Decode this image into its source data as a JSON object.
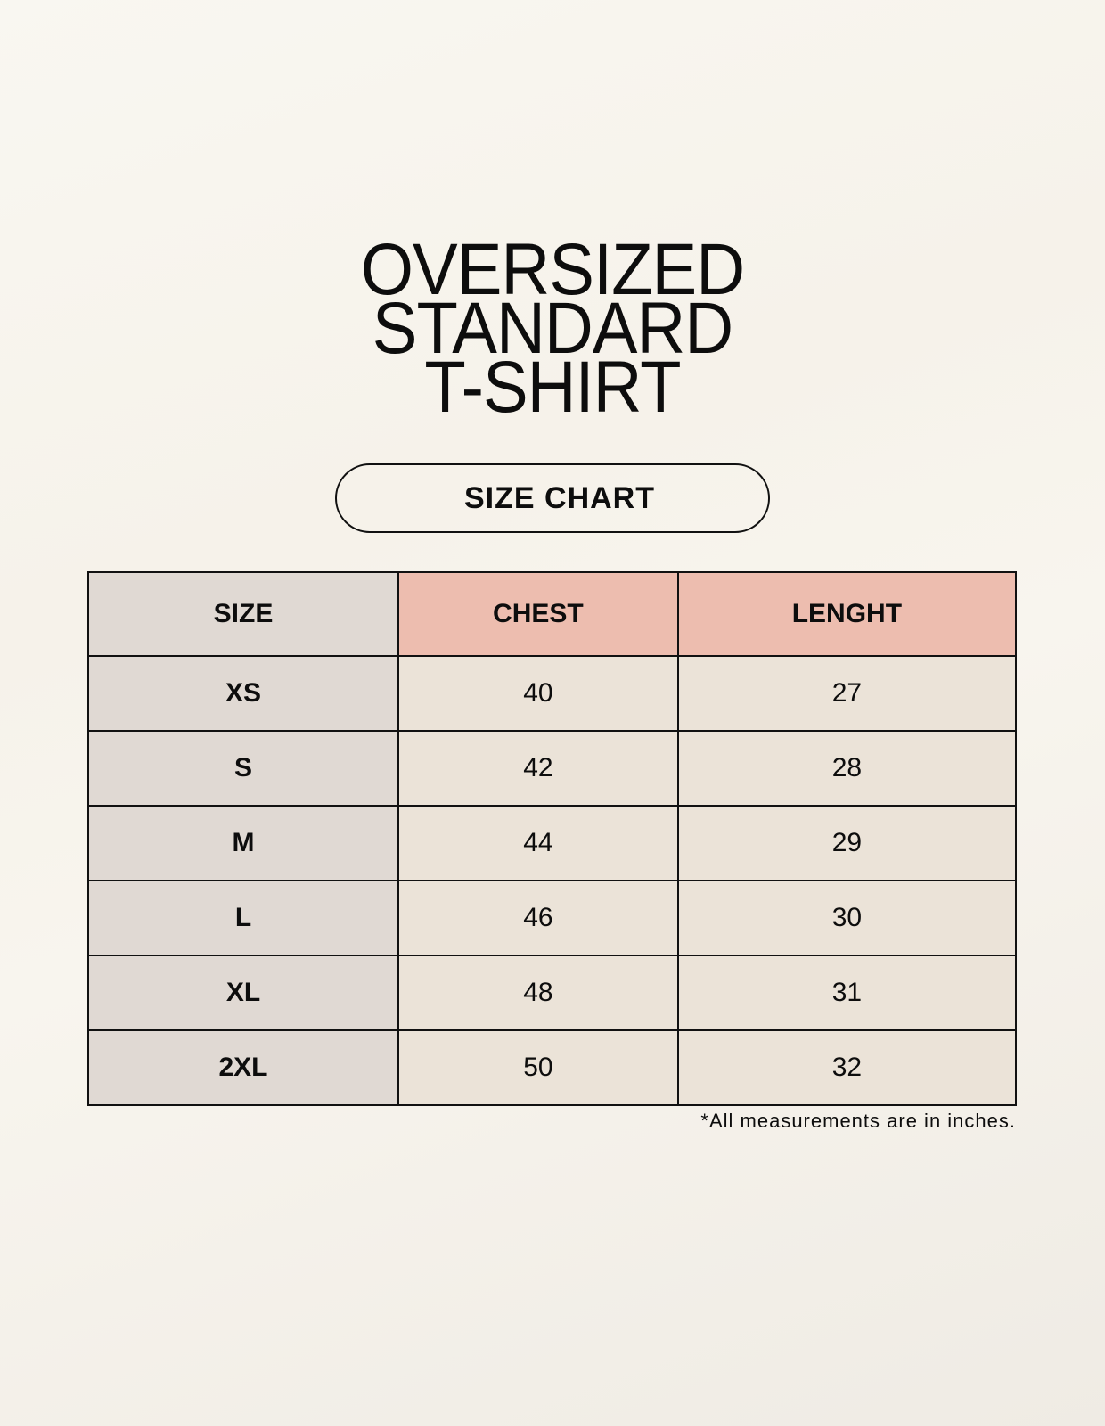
{
  "title_lines": [
    "OVERSIZED",
    "STANDARD",
    "T-SHIRT"
  ],
  "badge": "SIZE CHART",
  "table": {
    "headers": [
      "SIZE",
      "CHEST",
      "LENGHT"
    ],
    "rows": [
      [
        "XS",
        "40",
        "27"
      ],
      [
        "S",
        "42",
        "28"
      ],
      [
        "M",
        "44",
        "29"
      ],
      [
        "L",
        "46",
        "30"
      ],
      [
        "XL",
        "48",
        "31"
      ],
      [
        "2XL",
        "50",
        "32"
      ]
    ]
  },
  "footnote": "*All measurements are in inches.",
  "colors": {
    "size_column": "#e0d9d3",
    "header_accent": "#edbdaf",
    "cell": "#ebe3d8",
    "background": "#f8f5ee"
  }
}
